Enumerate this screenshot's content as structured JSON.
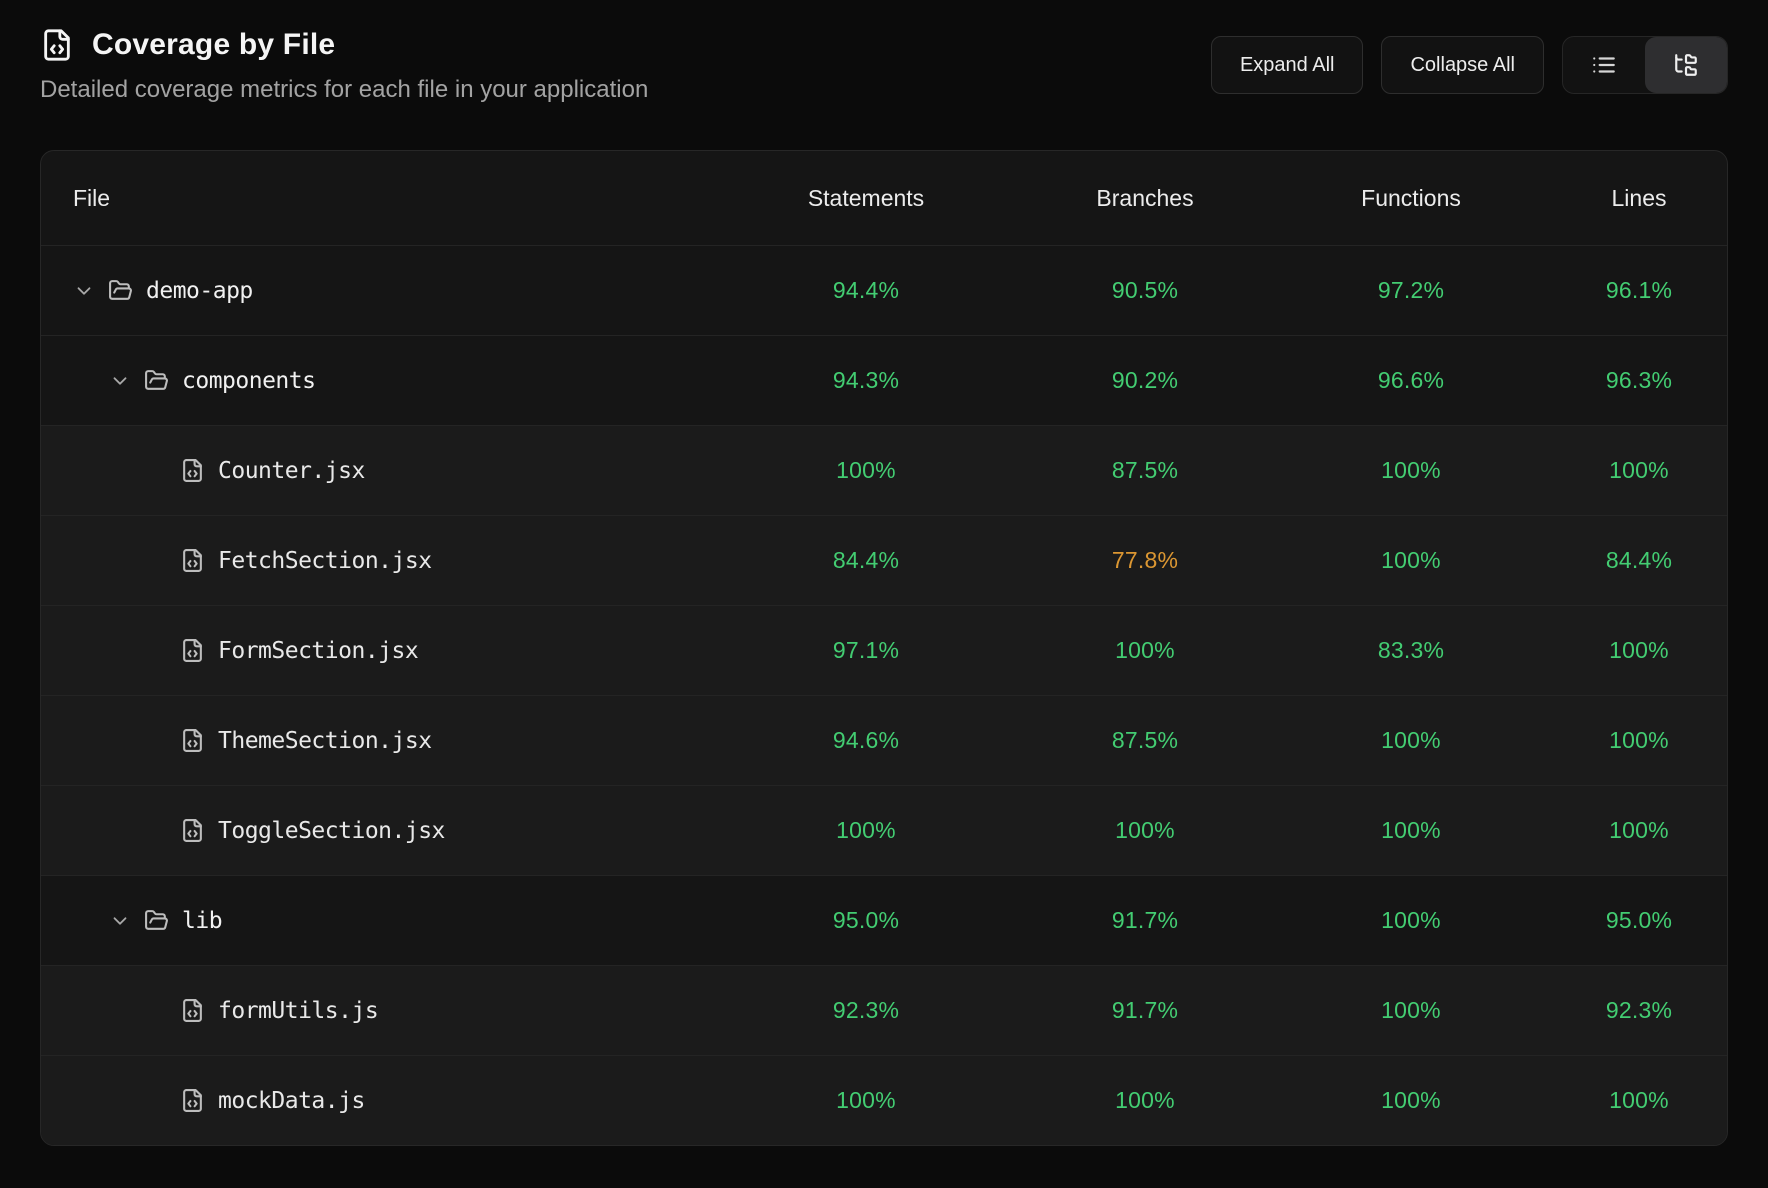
{
  "header": {
    "title": "Coverage by File",
    "subtitle": "Detailed coverage metrics for each file in your application",
    "expand_all_label": "Expand All",
    "collapse_all_label": "Collapse All",
    "view_toggle": {
      "options": [
        {
          "name": "list-view",
          "icon": "list-icon",
          "active": false
        },
        {
          "name": "tree-view",
          "icon": "folder-tree-icon",
          "active": true
        }
      ]
    },
    "title_icon": "file-code-icon"
  },
  "colors": {
    "good": "#43cd72",
    "warn": "#dc9732"
  },
  "table": {
    "columns": [
      "File",
      "Statements",
      "Branches",
      "Functions",
      "Lines"
    ],
    "rows": [
      {
        "name": "demo-app",
        "type": "folder",
        "level": 0,
        "expanded": true,
        "statements": {
          "value": "94.4%",
          "status": "good"
        },
        "branches": {
          "value": "90.5%",
          "status": "good"
        },
        "functions": {
          "value": "97.2%",
          "status": "good"
        },
        "lines": {
          "value": "96.1%",
          "status": "good"
        }
      },
      {
        "name": "components",
        "type": "folder",
        "level": 1,
        "expanded": true,
        "statements": {
          "value": "94.3%",
          "status": "good"
        },
        "branches": {
          "value": "90.2%",
          "status": "good"
        },
        "functions": {
          "value": "96.6%",
          "status": "good"
        },
        "lines": {
          "value": "96.3%",
          "status": "good"
        }
      },
      {
        "name": "Counter.jsx",
        "type": "file",
        "level": 2,
        "statements": {
          "value": "100%",
          "status": "good"
        },
        "branches": {
          "value": "87.5%",
          "status": "good"
        },
        "functions": {
          "value": "100%",
          "status": "good"
        },
        "lines": {
          "value": "100%",
          "status": "good"
        }
      },
      {
        "name": "FetchSection.jsx",
        "type": "file",
        "level": 2,
        "statements": {
          "value": "84.4%",
          "status": "good"
        },
        "branches": {
          "value": "77.8%",
          "status": "warn"
        },
        "functions": {
          "value": "100%",
          "status": "good"
        },
        "lines": {
          "value": "84.4%",
          "status": "good"
        }
      },
      {
        "name": "FormSection.jsx",
        "type": "file",
        "level": 2,
        "statements": {
          "value": "97.1%",
          "status": "good"
        },
        "branches": {
          "value": "100%",
          "status": "good"
        },
        "functions": {
          "value": "83.3%",
          "status": "good"
        },
        "lines": {
          "value": "100%",
          "status": "good"
        }
      },
      {
        "name": "ThemeSection.jsx",
        "type": "file",
        "level": 2,
        "statements": {
          "value": "94.6%",
          "status": "good"
        },
        "branches": {
          "value": "87.5%",
          "status": "good"
        },
        "functions": {
          "value": "100%",
          "status": "good"
        },
        "lines": {
          "value": "100%",
          "status": "good"
        }
      },
      {
        "name": "ToggleSection.jsx",
        "type": "file",
        "level": 2,
        "statements": {
          "value": "100%",
          "status": "good"
        },
        "branches": {
          "value": "100%",
          "status": "good"
        },
        "functions": {
          "value": "100%",
          "status": "good"
        },
        "lines": {
          "value": "100%",
          "status": "good"
        }
      },
      {
        "name": "lib",
        "type": "folder",
        "level": 1,
        "expanded": true,
        "statements": {
          "value": "95.0%",
          "status": "good"
        },
        "branches": {
          "value": "91.7%",
          "status": "good"
        },
        "functions": {
          "value": "100%",
          "status": "good"
        },
        "lines": {
          "value": "95.0%",
          "status": "good"
        }
      },
      {
        "name": "formUtils.js",
        "type": "file",
        "level": 2,
        "statements": {
          "value": "92.3%",
          "status": "good"
        },
        "branches": {
          "value": "91.7%",
          "status": "good"
        },
        "functions": {
          "value": "100%",
          "status": "good"
        },
        "lines": {
          "value": "92.3%",
          "status": "good"
        }
      },
      {
        "name": "mockData.js",
        "type": "file",
        "level": 2,
        "statements": {
          "value": "100%",
          "status": "good"
        },
        "branches": {
          "value": "100%",
          "status": "good"
        },
        "functions": {
          "value": "100%",
          "status": "good"
        },
        "lines": {
          "value": "100%",
          "status": "good"
        }
      }
    ]
  }
}
